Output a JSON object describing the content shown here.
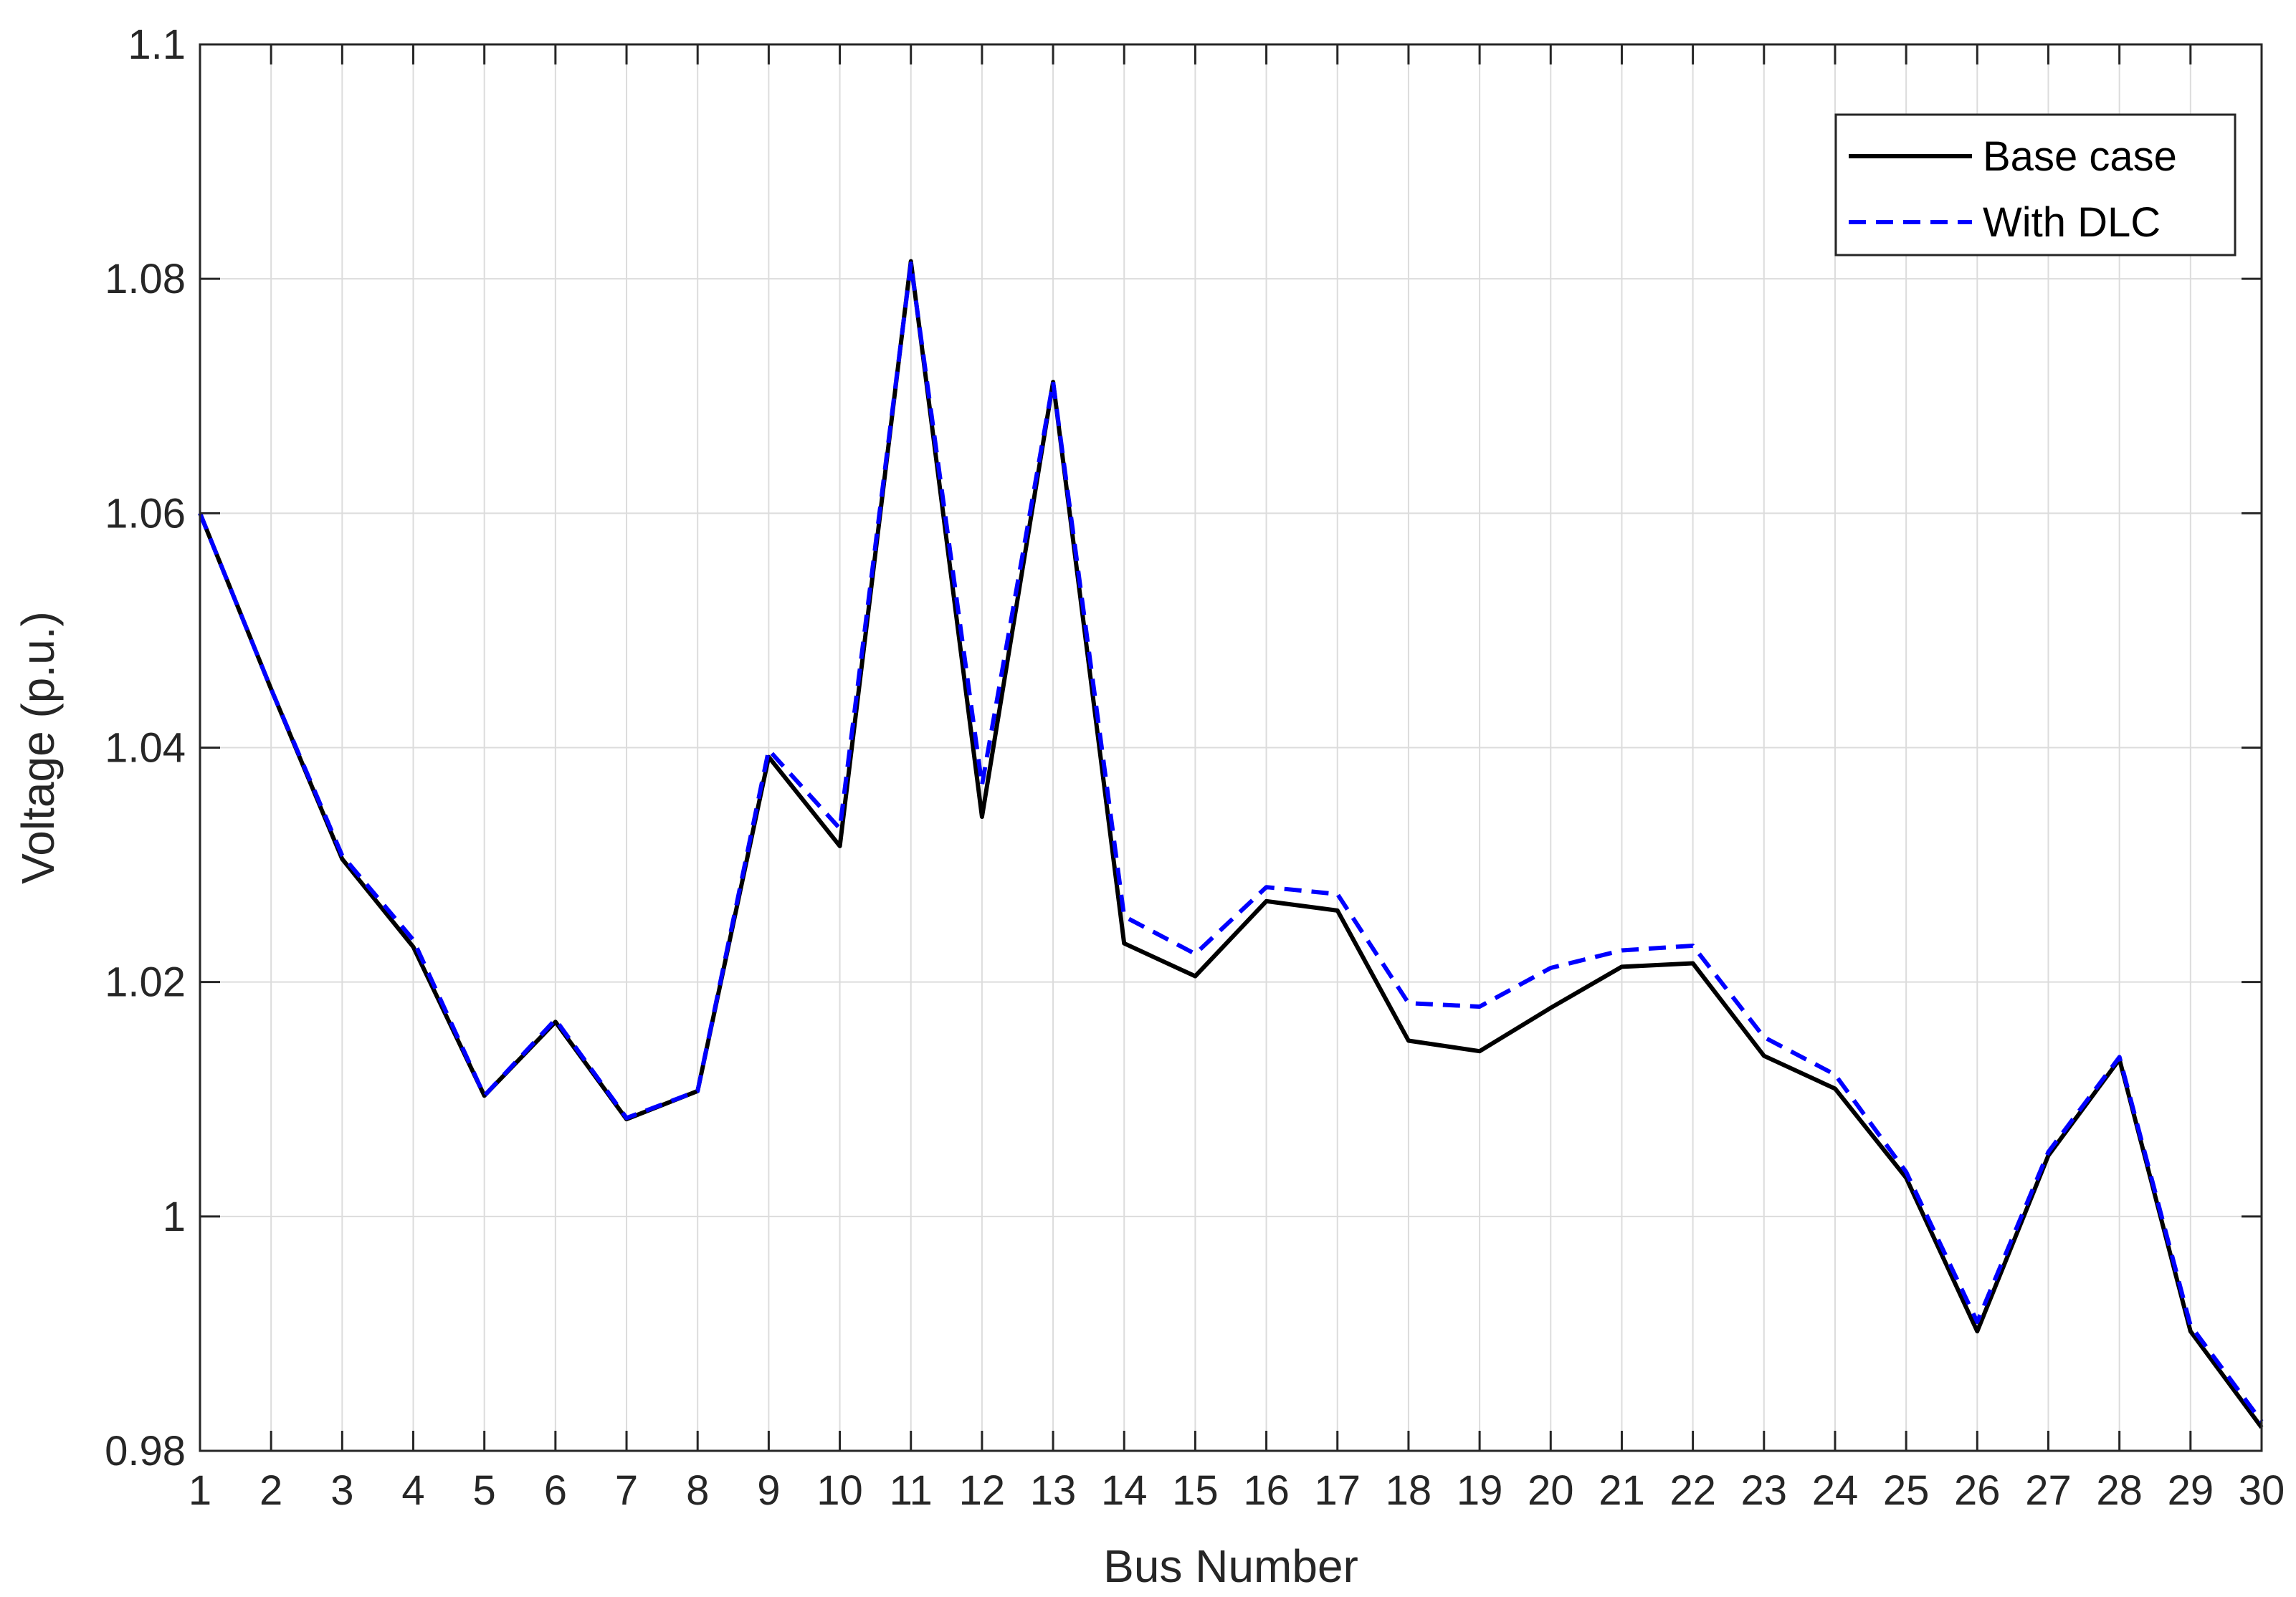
{
  "chart_data": {
    "type": "line",
    "title": "",
    "xlabel": "Bus Number",
    "ylabel": "Voltage (p.u.)",
    "xlim": [
      1,
      30
    ],
    "ylim": [
      0.98,
      1.1
    ],
    "x_ticks": [
      1,
      2,
      3,
      4,
      5,
      6,
      7,
      8,
      9,
      10,
      11,
      12,
      13,
      14,
      15,
      16,
      17,
      18,
      19,
      20,
      21,
      22,
      23,
      24,
      25,
      26,
      27,
      28,
      29,
      30
    ],
    "y_ticks": [
      0.98,
      1,
      1.02,
      1.04,
      1.06,
      1.08,
      1.1
    ],
    "y_tick_labels": [
      "0.98",
      "1",
      "1.02",
      "1.04",
      "1.06",
      "1.08",
      "1.1"
    ],
    "grid": true,
    "legend_position": "top-right",
    "x": [
      1,
      2,
      3,
      4,
      5,
      6,
      7,
      8,
      9,
      10,
      11,
      12,
      13,
      14,
      15,
      16,
      17,
      18,
      19,
      20,
      21,
      22,
      23,
      24,
      25,
      26,
      27,
      28,
      29,
      30
    ],
    "series": [
      {
        "name": "Base case",
        "color": "#000000",
        "style": "solid",
        "values": [
          1.06,
          1.045,
          1.0305,
          1.023,
          1.0103,
          1.0166,
          1.0083,
          1.0107,
          1.0392,
          1.0316,
          1.0815,
          1.0341,
          1.0712,
          1.0233,
          1.0205,
          1.0269,
          1.0261,
          1.015,
          1.0141,
          1.0178,
          1.0213,
          1.0216,
          1.0137,
          1.0109,
          1.0033,
          0.9902,
          1.0052,
          1.0134,
          0.9902,
          0.982
        ]
      },
      {
        "name": "With DLC",
        "color": "#0000ff",
        "style": "dashed",
        "values": [
          1.06,
          1.045,
          1.0308,
          1.0236,
          1.0103,
          1.0168,
          1.0084,
          1.0107,
          1.0398,
          1.0331,
          1.0813,
          1.0368,
          1.0712,
          1.0256,
          1.0224,
          1.0281,
          1.0275,
          1.0182,
          1.0179,
          1.0212,
          1.0227,
          1.0231,
          1.0153,
          1.0121,
          1.0038,
          0.991,
          1.0055,
          1.0136,
          0.9907,
          0.9825
        ]
      }
    ]
  }
}
